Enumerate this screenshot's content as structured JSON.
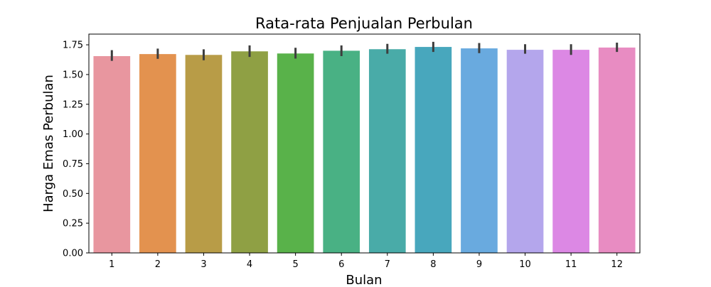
{
  "chart_data": {
    "type": "bar",
    "title": "Rata-rata Penjualan Perbulan",
    "xlabel": "Bulan",
    "ylabel": "Harga Emas Perbulan",
    "categories": [
      "1",
      "2",
      "3",
      "4",
      "5",
      "6",
      "7",
      "8",
      "9",
      "10",
      "11",
      "12"
    ],
    "values": [
      1.655,
      1.672,
      1.665,
      1.695,
      1.677,
      1.7,
      1.713,
      1.732,
      1.72,
      1.708,
      1.708,
      1.727
    ],
    "error_low": [
      1.615,
      1.632,
      1.62,
      1.648,
      1.634,
      1.655,
      1.675,
      1.69,
      1.68,
      1.675,
      1.665,
      1.69
    ],
    "error_high": [
      1.705,
      1.718,
      1.712,
      1.745,
      1.725,
      1.745,
      1.758,
      1.775,
      1.765,
      1.755,
      1.755,
      1.768
    ],
    "ylim": [
      0,
      1.84
    ],
    "yticks": [
      "0.00",
      "0.25",
      "0.50",
      "0.75",
      "1.00",
      "1.25",
      "1.50",
      "1.75"
    ],
    "colors": [
      "#e8969f",
      "#e3924f",
      "#b89c47",
      "#8fa044",
      "#59b24a",
      "#49b184",
      "#49aba8",
      "#48a7bd",
      "#69aadf",
      "#b4a6ec",
      "#dc88e4",
      "#e88cc2"
    ],
    "errorbar_color": "#3d3d3d",
    "grid": false,
    "legend": "none"
  }
}
